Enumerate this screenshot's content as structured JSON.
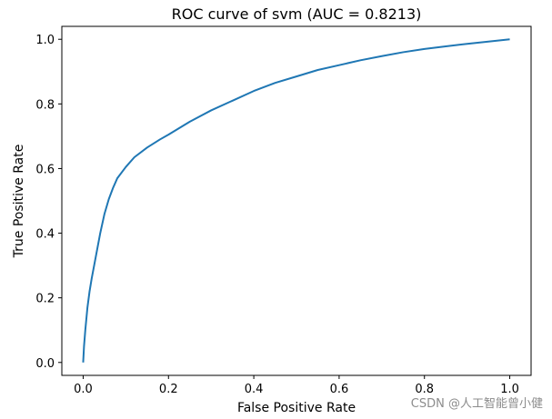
{
  "chart_data": {
    "type": "line",
    "title": "ROC curve of svm (AUC = 0.8213)",
    "xlabel": "False Positive Rate",
    "ylabel": "True Positive Rate",
    "xlim": [
      -0.05,
      1.05
    ],
    "ylim": [
      -0.04,
      1.04
    ],
    "xticks": [
      0.0,
      0.2,
      0.4,
      0.6,
      0.8,
      1.0
    ],
    "yticks": [
      0.0,
      0.2,
      0.4,
      0.6,
      0.8,
      1.0
    ],
    "xtick_labels": [
      "0.0",
      "0.2",
      "0.4",
      "0.6",
      "0.8",
      "1.0"
    ],
    "ytick_labels": [
      "0.0",
      "0.2",
      "0.4",
      "0.6",
      "0.8",
      "1.0"
    ],
    "grid": false,
    "series": [
      {
        "name": "svm",
        "color": "#1f77b4",
        "x": [
          0.0,
          0.002,
          0.005,
          0.01,
          0.015,
          0.02,
          0.03,
          0.04,
          0.05,
          0.06,
          0.07,
          0.08,
          0.1,
          0.12,
          0.15,
          0.18,
          0.2,
          0.25,
          0.3,
          0.35,
          0.4,
          0.45,
          0.5,
          0.55,
          0.6,
          0.65,
          0.7,
          0.75,
          0.8,
          0.85,
          0.9,
          0.95,
          1.0
        ],
        "y": [
          0.0,
          0.05,
          0.1,
          0.17,
          0.22,
          0.26,
          0.33,
          0.4,
          0.46,
          0.505,
          0.54,
          0.57,
          0.605,
          0.635,
          0.665,
          0.69,
          0.705,
          0.745,
          0.78,
          0.81,
          0.84,
          0.865,
          0.885,
          0.905,
          0.92,
          0.935,
          0.948,
          0.96,
          0.97,
          0.978,
          0.986,
          0.993,
          1.0
        ]
      }
    ]
  },
  "watermark": "CSDN @人工智能曾小健"
}
